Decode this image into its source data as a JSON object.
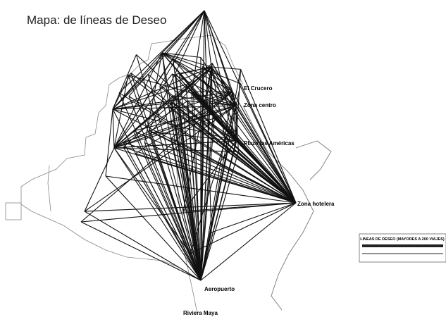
{
  "title": "Mapa: de líneas de Deseo",
  "places": [
    "El Crucero",
    "Zona centro",
    "Plaza las Américas",
    "Zona hotelera",
    "Aeropuerto",
    "Riviera Maya"
  ],
  "legend": {
    "title": "LINEAS DE DESEO (MAYORES A 200 VIAJES)"
  }
}
